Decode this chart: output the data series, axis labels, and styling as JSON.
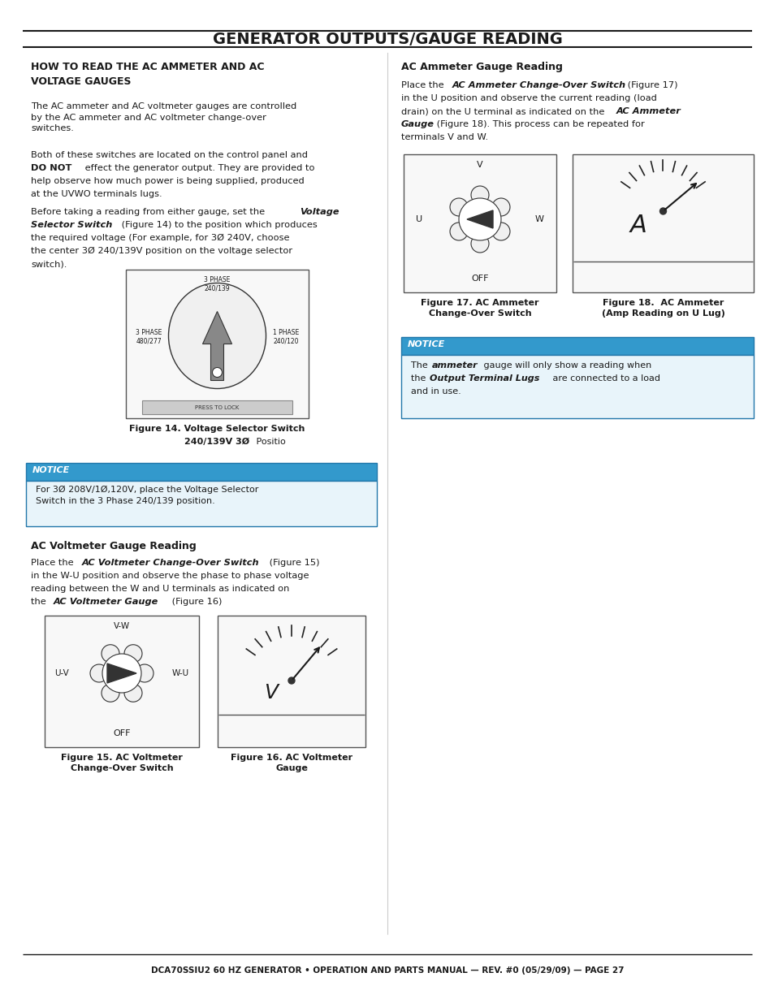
{
  "title": "GENERATOR OUTPUTS/GAUGE READING",
  "page_bg": "#ffffff",
  "footer_text": "DCA70SSIU2 60 HZ GENERATOR • OPERATION AND PARTS MANUAL — REV. #0 (05/29/09) — PAGE 27",
  "notice_header_bg": "#3399cc",
  "notice_body_bg": "#e8f4fa",
  "notice_border": "#2277aa",
  "left": {
    "heading": "HOW TO READ THE AC AMMETER AND AC\nVOLTAGE GAUGES",
    "para1": "The AC ammeter and AC voltmeter gauges are controlled\nby the AC ammeter and AC voltmeter change-over\nswitches.",
    "para2_normal": "Both of these switches are located on the control panel and\n",
    "para2_bold": "DO NOT",
    "para2_rest": " effect the generator output. They are provided to\nhelp observe how much power is being supplied, produced\nat the UVWO terminals lugs.",
    "para3_pre": "Before taking a reading from either gauge, set the ",
    "para3_bold": "Voltage\nSelector Switch",
    "para3_post": " (Figure 14) to the position which produces\nthe required voltage (For example, for 3Ø 240V, choose\nthe center 3Ø 240/139V position on the voltage selector\nswitch).",
    "fig14_top_label": "3 PHASE\n240/139",
    "fig14_left_label": "3 PHASE\n480/277",
    "fig14_right_label": "1 PHASE\n240/120",
    "fig14_bottom_label": "PRESS TO LOCK",
    "fig14_caption_bold": "Figure 14. Voltage Selector Switch\n240/139V 3Ø",
    "fig14_caption_normal": " Positio",
    "notice1_label": "NOTICE",
    "notice1_text": "For 3Ø 208V/1Ø,120V, place the Voltage Selector\nSwitch in the 3 Phase 240/139 position.",
    "voltmeter_heading": "AC Voltmeter Gauge Reading",
    "voltmeter_pre": "Place the ",
    "voltmeter_bold": "AC Voltmeter Change-Over Switch",
    "voltmeter_post": " (Figure 15)\nin the W-U position and observe the phase to phase voltage\nreading between the W and U terminals as indicated on\nthe ",
    "voltmeter_bold2": "AC Voltmeter Gauge",
    "voltmeter_post2": " (Figure 16)",
    "fig15_caption": "Figure 15. AC Voltmeter\nChange-Over Switch",
    "fig16_caption": "Figure 16. AC Voltmeter\nGauge"
  },
  "right": {
    "heading": "AC Ammeter Gauge Reading",
    "para_pre": "Place the ",
    "para_bold1": "AC Ammeter Change-Over Switch",
    "para_mid": " (Figure 17)\nin the U position and observe the current reading (load\ndrain) on the U terminal as indicated on the ",
    "para_bold2": "AC Ammeter\nGauge",
    "para_post": " (Figure 18). This process can be repeated for\nterminals V and W.",
    "fig17_caption": "Figure 17. AC Ammeter\nChange-Over Switch",
    "fig18_caption": "Figure 18.  AC Ammeter\n(Amp Reading on U Lug)",
    "notice2_label": "NOTICE",
    "notice2_pre": "The ",
    "notice2_bold1": "ammeter",
    "notice2_mid": " gauge will only show a reading when\nthe ",
    "notice2_bold2": "Output Terminal Lugs",
    "notice2_post": " are connected to a load\nand in use."
  }
}
